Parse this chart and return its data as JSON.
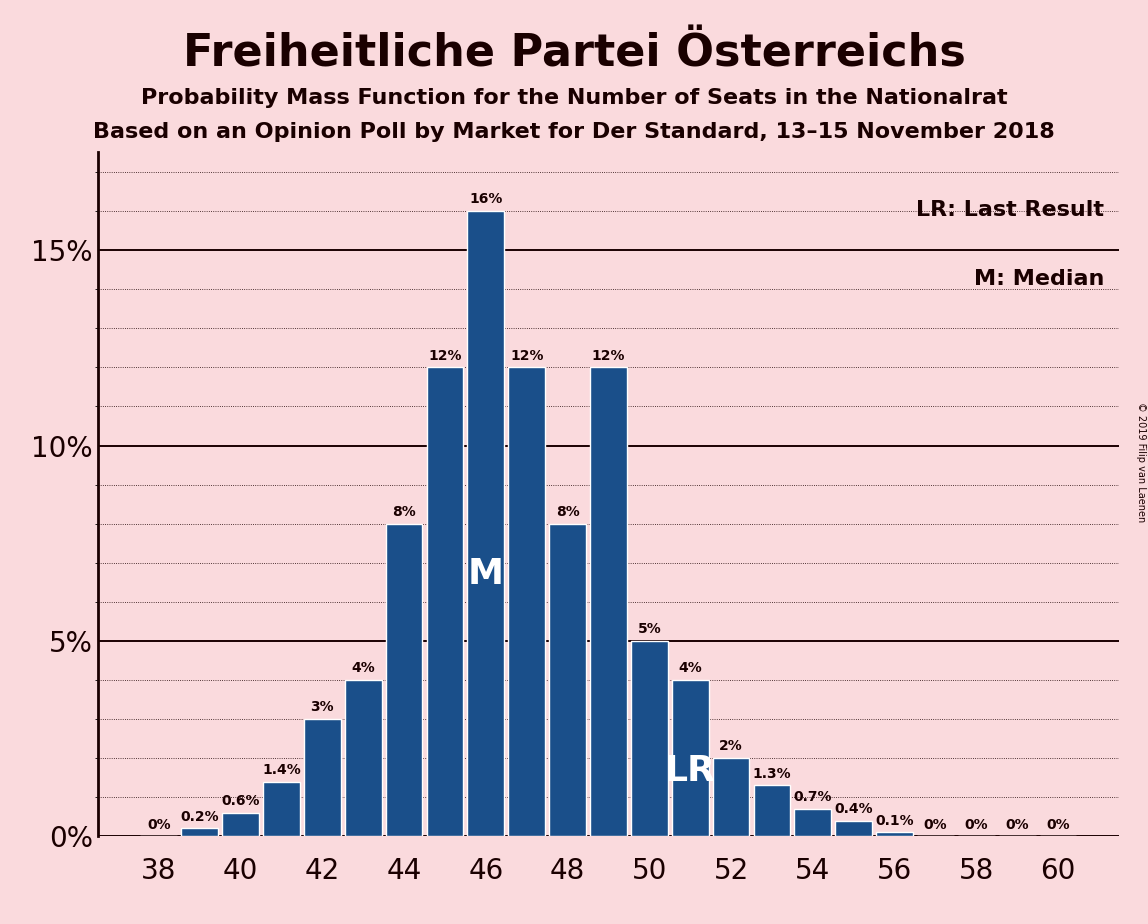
{
  "title": "Freiheitliche Partei Österreichs",
  "subtitle1": "Probability Mass Function for the Number of Seats in the Nationalrat",
  "subtitle2": "Based on an Opinion Poll by Market for Der Standard, 13–15 November 2018",
  "copyright": "© 2019 Filip van Laenen",
  "seats": [
    38,
    39,
    40,
    41,
    42,
    43,
    44,
    45,
    46,
    47,
    48,
    49,
    50,
    51,
    52,
    53,
    54,
    55,
    56,
    57,
    58,
    59,
    60
  ],
  "probabilities": [
    0.0,
    0.2,
    0.6,
    1.4,
    3.0,
    4.0,
    8.0,
    12.0,
    16.0,
    12.0,
    8.0,
    12.0,
    5.0,
    4.0,
    2.0,
    1.3,
    0.7,
    0.4,
    0.1,
    0.0,
    0.0,
    0.0,
    0.0
  ],
  "labels": [
    "0%",
    "0.2%",
    "0.6%",
    "1.4%",
    "3%",
    "4%",
    "8%",
    "12%",
    "16%",
    "12%",
    "8%",
    "12%",
    "5%",
    "4%",
    "2%",
    "1.3%",
    "0.7%",
    "0.4%",
    "0.1%",
    "0%",
    "0%",
    "0%",
    "0%"
  ],
  "bar_color": "#1a4f8a",
  "background_color": "#fadadd",
  "bar_edge_color": "#ffffff",
  "text_color": "#1a0000",
  "median_seat": 46,
  "lr_seat": 51,
  "yticks": [
    0,
    5,
    10,
    15
  ],
  "ylim": [
    0,
    17.5
  ],
  "xlim": [
    36.5,
    61.5
  ],
  "xticks": [
    38,
    40,
    42,
    44,
    46,
    48,
    50,
    52,
    54,
    56,
    58,
    60
  ],
  "title_fontsize": 32,
  "subtitle_fontsize": 16,
  "tick_fontsize": 20,
  "label_fontsize": 10,
  "legend_fontsize": 16,
  "bar_width": 0.9
}
